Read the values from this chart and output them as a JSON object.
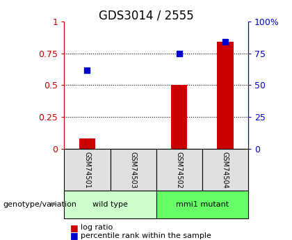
{
  "title": "GDS3014 / 2555",
  "samples": [
    "GSM74501",
    "GSM74503",
    "GSM74502",
    "GSM74504"
  ],
  "log_ratio": [
    0.08,
    0.0,
    0.5,
    0.84
  ],
  "percentile_rank": [
    0.62,
    0.0,
    0.75,
    0.84
  ],
  "groups": [
    {
      "label": "wild type",
      "indices": [
        0,
        1
      ],
      "color": "#ccffcc"
    },
    {
      "label": "mmi1 mutant",
      "indices": [
        2,
        3
      ],
      "color": "#66ff66"
    }
  ],
  "bar_color": "#cc0000",
  "dot_color": "#0000cc",
  "left_axis_color": "#cc0000",
  "right_axis_color": "#0000cc",
  "ylim": [
    0,
    1
  ],
  "yticks_left": [
    0,
    0.25,
    0.5,
    0.75,
    1.0
  ],
  "yticks_right": [
    0,
    25,
    50,
    75,
    100
  ],
  "ytick_labels_left": [
    "0",
    "0.25",
    "0.5",
    "0.75",
    "1"
  ],
  "ytick_labels_right": [
    "0",
    "25",
    "50",
    "75",
    "100%"
  ],
  "grid_lines": [
    0.25,
    0.5,
    0.75
  ],
  "legend_log_ratio": "log ratio",
  "legend_percentile": "percentile rank within the sample",
  "genotype_label": "genotype/variation",
  "bar_width": 0.35,
  "bg_color": "#e0e0e0"
}
